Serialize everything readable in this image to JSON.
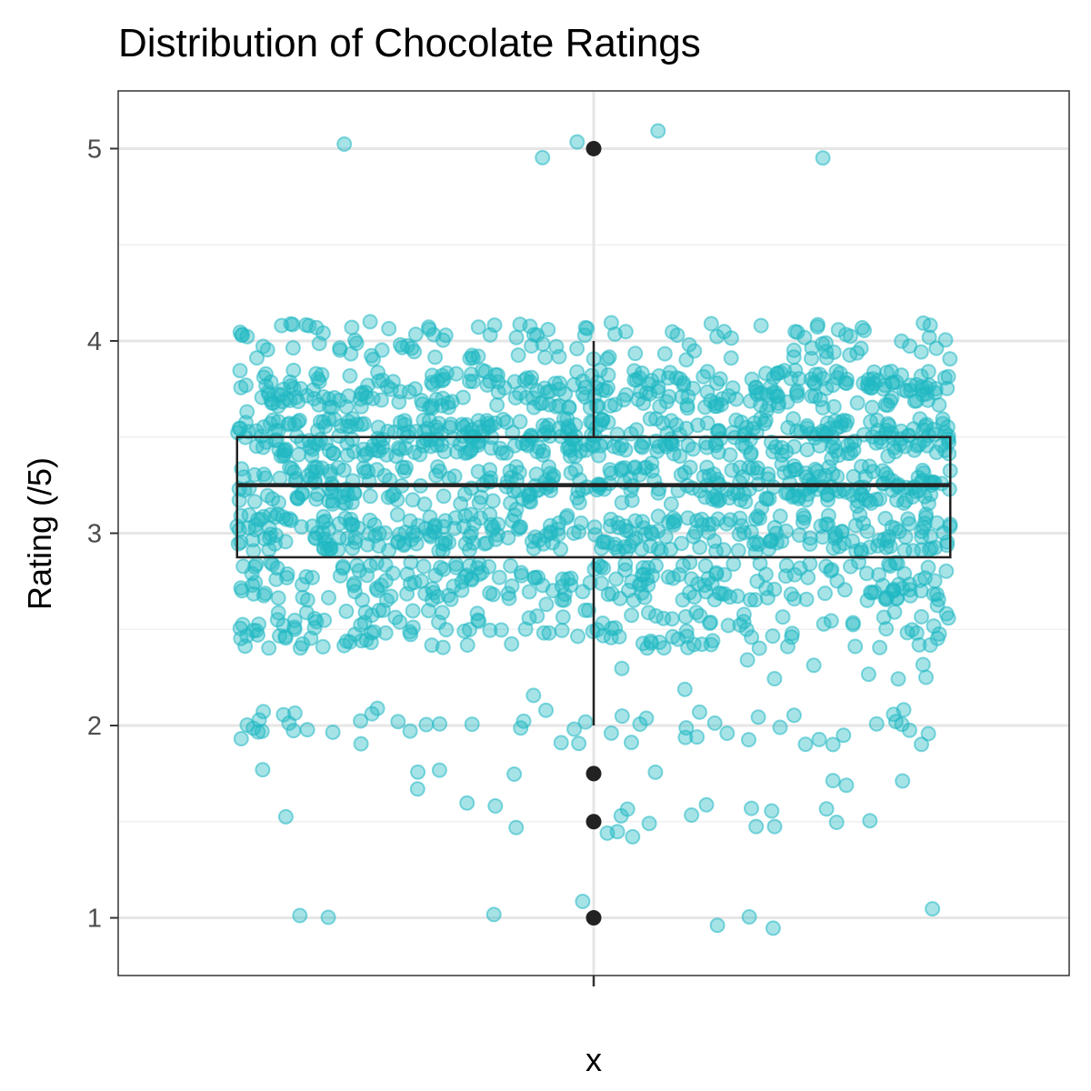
{
  "chart_data": {
    "type": "boxplot+jitter",
    "title": "Distribution of Chocolate Ratings",
    "xlabel": "x",
    "ylabel": "Rating (/5)",
    "x_categories": [
      "x"
    ],
    "y_ticks": [
      1,
      2,
      3,
      4,
      5
    ],
    "ylim": [
      0.7,
      5.3
    ],
    "grid": true,
    "box": {
      "q1": 2.875,
      "median": 3.25,
      "q3": 3.5,
      "whisker_low": 2.0,
      "whisker_high": 4.0,
      "outliers": [
        5.0,
        1.75,
        1.5,
        1.0
      ]
    },
    "n_points": 1795,
    "point_color": "#20b8c3",
    "box_color": "#222222",
    "outlier_color": "#222222"
  }
}
